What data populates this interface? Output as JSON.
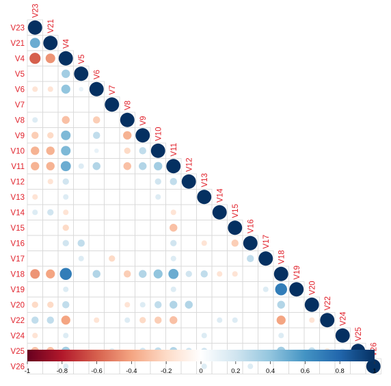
{
  "chart_data": {
    "type": "correlation-matrix",
    "variables": [
      "V23",
      "V21",
      "V4",
      "V5",
      "V6",
      "V7",
      "V8",
      "V9",
      "V10",
      "V11",
      "V12",
      "V13",
      "V14",
      "V15",
      "V16",
      "V17",
      "V18",
      "V19",
      "V20",
      "V22",
      "V24",
      "V25",
      "V26"
    ],
    "layout": "lower-triangle-with-diagonal",
    "label_color": "#e0202a",
    "grid": true,
    "colorbar": {
      "position": "bottom",
      "range": [
        -1,
        1
      ],
      "ticks": [
        "-1",
        "-0.8",
        "-0.6",
        "-0.4",
        "-0.2",
        "0",
        "0.2",
        "0.4",
        "0.6",
        "0.8",
        "1"
      ],
      "colors": [
        "#67001f",
        "#b2182b",
        "#d6604d",
        "#f4a582",
        "#fddbc7",
        "#ffffff",
        "#d1e5f0",
        "#92c5de",
        "#4393c3",
        "#2166ac",
        "#053061"
      ]
    },
    "correlations": [
      {
        "row": "V21",
        "col": "V23",
        "r": 0.5
      },
      {
        "row": "V4",
        "col": "V23",
        "r": -0.6
      },
      {
        "row": "V4",
        "col": "V21",
        "r": -0.45
      },
      {
        "row": "V5",
        "col": "V4",
        "r": 0.35
      },
      {
        "row": "V6",
        "col": "V23",
        "r": -0.15
      },
      {
        "row": "V6",
        "col": "V21",
        "r": -0.15
      },
      {
        "row": "V6",
        "col": "V4",
        "r": 0.4
      },
      {
        "row": "V6",
        "col": "V5",
        "r": 0.1
      },
      {
        "row": "V8",
        "col": "V23",
        "r": 0.15
      },
      {
        "row": "V8",
        "col": "V4",
        "r": -0.3
      },
      {
        "row": "V8",
        "col": "V6",
        "r": -0.25
      },
      {
        "row": "V9",
        "col": "V23",
        "r": -0.25
      },
      {
        "row": "V9",
        "col": "V21",
        "r": -0.2
      },
      {
        "row": "V9",
        "col": "V4",
        "r": 0.45
      },
      {
        "row": "V9",
        "col": "V6",
        "r": 0.25
      },
      {
        "row": "V9",
        "col": "V8",
        "r": -0.35
      },
      {
        "row": "V10",
        "col": "V23",
        "r": -0.35
      },
      {
        "row": "V10",
        "col": "V21",
        "r": -0.35
      },
      {
        "row": "V10",
        "col": "V4",
        "r": 0.45
      },
      {
        "row": "V10",
        "col": "V6",
        "r": 0.1
      },
      {
        "row": "V10",
        "col": "V8",
        "r": -0.2
      },
      {
        "row": "V10",
        "col": "V9",
        "r": 0.25
      },
      {
        "row": "V11",
        "col": "V23",
        "r": -0.35
      },
      {
        "row": "V11",
        "col": "V21",
        "r": -0.35
      },
      {
        "row": "V11",
        "col": "V4",
        "r": 0.5
      },
      {
        "row": "V11",
        "col": "V5",
        "r": 0.15
      },
      {
        "row": "V11",
        "col": "V6",
        "r": 0.3
      },
      {
        "row": "V11",
        "col": "V8",
        "r": -0.3
      },
      {
        "row": "V11",
        "col": "V9",
        "r": 0.3
      },
      {
        "row": "V11",
        "col": "V10",
        "r": 0.35
      },
      {
        "row": "V12",
        "col": "V21",
        "r": -0.15
      },
      {
        "row": "V12",
        "col": "V4",
        "r": 0.2
      },
      {
        "row": "V12",
        "col": "V10",
        "r": 0.2
      },
      {
        "row": "V12",
        "col": "V11",
        "r": 0.25
      },
      {
        "row": "V13",
        "col": "V23",
        "r": -0.15
      },
      {
        "row": "V13",
        "col": "V4",
        "r": 0.15
      },
      {
        "row": "V13",
        "col": "V10",
        "r": 0.15
      },
      {
        "row": "V14",
        "col": "V23",
        "r": 0.15
      },
      {
        "row": "V14",
        "col": "V21",
        "r": 0.2
      },
      {
        "row": "V14",
        "col": "V4",
        "r": -0.15
      },
      {
        "row": "V14",
        "col": "V11",
        "r": -0.15
      },
      {
        "row": "V15",
        "col": "V4",
        "r": -0.2
      },
      {
        "row": "V15",
        "col": "V11",
        "r": -0.3
      },
      {
        "row": "V16",
        "col": "V4",
        "r": 0.2
      },
      {
        "row": "V16",
        "col": "V5",
        "r": 0.25
      },
      {
        "row": "V16",
        "col": "V11",
        "r": 0.2
      },
      {
        "row": "V16",
        "col": "V13",
        "r": -0.15
      },
      {
        "row": "V16",
        "col": "V15",
        "r": -0.25
      },
      {
        "row": "V17",
        "col": "V5",
        "r": 0.15
      },
      {
        "row": "V17",
        "col": "V7",
        "r": -0.2
      },
      {
        "row": "V17",
        "col": "V11",
        "r": 0.15
      },
      {
        "row": "V17",
        "col": "V16",
        "r": 0.25
      },
      {
        "row": "V18",
        "col": "V23",
        "r": -0.45
      },
      {
        "row": "V18",
        "col": "V21",
        "r": -0.4
      },
      {
        "row": "V18",
        "col": "V4",
        "r": 0.7
      },
      {
        "row": "V18",
        "col": "V6",
        "r": 0.3
      },
      {
        "row": "V18",
        "col": "V8",
        "r": -0.25
      },
      {
        "row": "V18",
        "col": "V9",
        "r": 0.3
      },
      {
        "row": "V18",
        "col": "V10",
        "r": 0.4
      },
      {
        "row": "V18",
        "col": "V11",
        "r": 0.5
      },
      {
        "row": "V18",
        "col": "V12",
        "r": 0.2
      },
      {
        "row": "V18",
        "col": "V13",
        "r": 0.25
      },
      {
        "row": "V18",
        "col": "V14",
        "r": -0.15
      },
      {
        "row": "V18",
        "col": "V15",
        "r": -0.15
      },
      {
        "row": "V19",
        "col": "V4",
        "r": 0.15
      },
      {
        "row": "V19",
        "col": "V11",
        "r": 0.15
      },
      {
        "row": "V19",
        "col": "V17",
        "r": 0.15
      },
      {
        "row": "V19",
        "col": "V18",
        "r": 0.7
      },
      {
        "row": "V20",
        "col": "V23",
        "r": -0.2
      },
      {
        "row": "V20",
        "col": "V21",
        "r": -0.2
      },
      {
        "row": "V20",
        "col": "V4",
        "r": 0.25
      },
      {
        "row": "V20",
        "col": "V8",
        "r": -0.15
      },
      {
        "row": "V20",
        "col": "V9",
        "r": 0.15
      },
      {
        "row": "V20",
        "col": "V10",
        "r": 0.25
      },
      {
        "row": "V20",
        "col": "V11",
        "r": 0.3
      },
      {
        "row": "V20",
        "col": "V12",
        "r": 0.3
      },
      {
        "row": "V20",
        "col": "V18",
        "r": 0.3
      },
      {
        "row": "V22",
        "col": "V23",
        "r": 0.25
      },
      {
        "row": "V22",
        "col": "V21",
        "r": 0.25
      },
      {
        "row": "V22",
        "col": "V4",
        "r": -0.4
      },
      {
        "row": "V22",
        "col": "V6",
        "r": -0.15
      },
      {
        "row": "V22",
        "col": "V8",
        "r": 0.15
      },
      {
        "row": "V22",
        "col": "V9",
        "r": -0.2
      },
      {
        "row": "V22",
        "col": "V10",
        "r": -0.25
      },
      {
        "row": "V22",
        "col": "V11",
        "r": -0.3
      },
      {
        "row": "V22",
        "col": "V14",
        "r": 0.15
      },
      {
        "row": "V22",
        "col": "V15",
        "r": 0.15
      },
      {
        "row": "V22",
        "col": "V18",
        "r": -0.4
      },
      {
        "row": "V22",
        "col": "V20",
        "r": -0.15
      },
      {
        "row": "V24",
        "col": "V23",
        "r": -0.15
      },
      {
        "row": "V24",
        "col": "V4",
        "r": 0.15
      },
      {
        "row": "V24",
        "col": "V13",
        "r": 0.15
      },
      {
        "row": "V24",
        "col": "V18",
        "r": 0.15
      },
      {
        "row": "V25",
        "col": "V23",
        "r": -0.3
      },
      {
        "row": "V25",
        "col": "V21",
        "r": -0.3
      },
      {
        "row": "V25",
        "col": "V4",
        "r": 0.35
      },
      {
        "row": "V25",
        "col": "V7",
        "r": 0.15
      },
      {
        "row": "V25",
        "col": "V9",
        "r": 0.2
      },
      {
        "row": "V25",
        "col": "V10",
        "r": 0.25
      },
      {
        "row": "V25",
        "col": "V11",
        "r": 0.3
      },
      {
        "row": "V25",
        "col": "V12",
        "r": 0.2
      },
      {
        "row": "V25",
        "col": "V13",
        "r": 0.2
      },
      {
        "row": "V25",
        "col": "V18",
        "r": 0.35
      },
      {
        "row": "V25",
        "col": "V20",
        "r": 0.25
      },
      {
        "row": "V25",
        "col": "V22",
        "r": -0.15
      },
      {
        "row": "V25",
        "col": "V24",
        "r": 0.15
      },
      {
        "row": "V26",
        "col": "V4",
        "r": 0.15
      },
      {
        "row": "V26",
        "col": "V13",
        "r": 0.15
      },
      {
        "row": "V26",
        "col": "V16",
        "r": 0.15
      }
    ]
  }
}
